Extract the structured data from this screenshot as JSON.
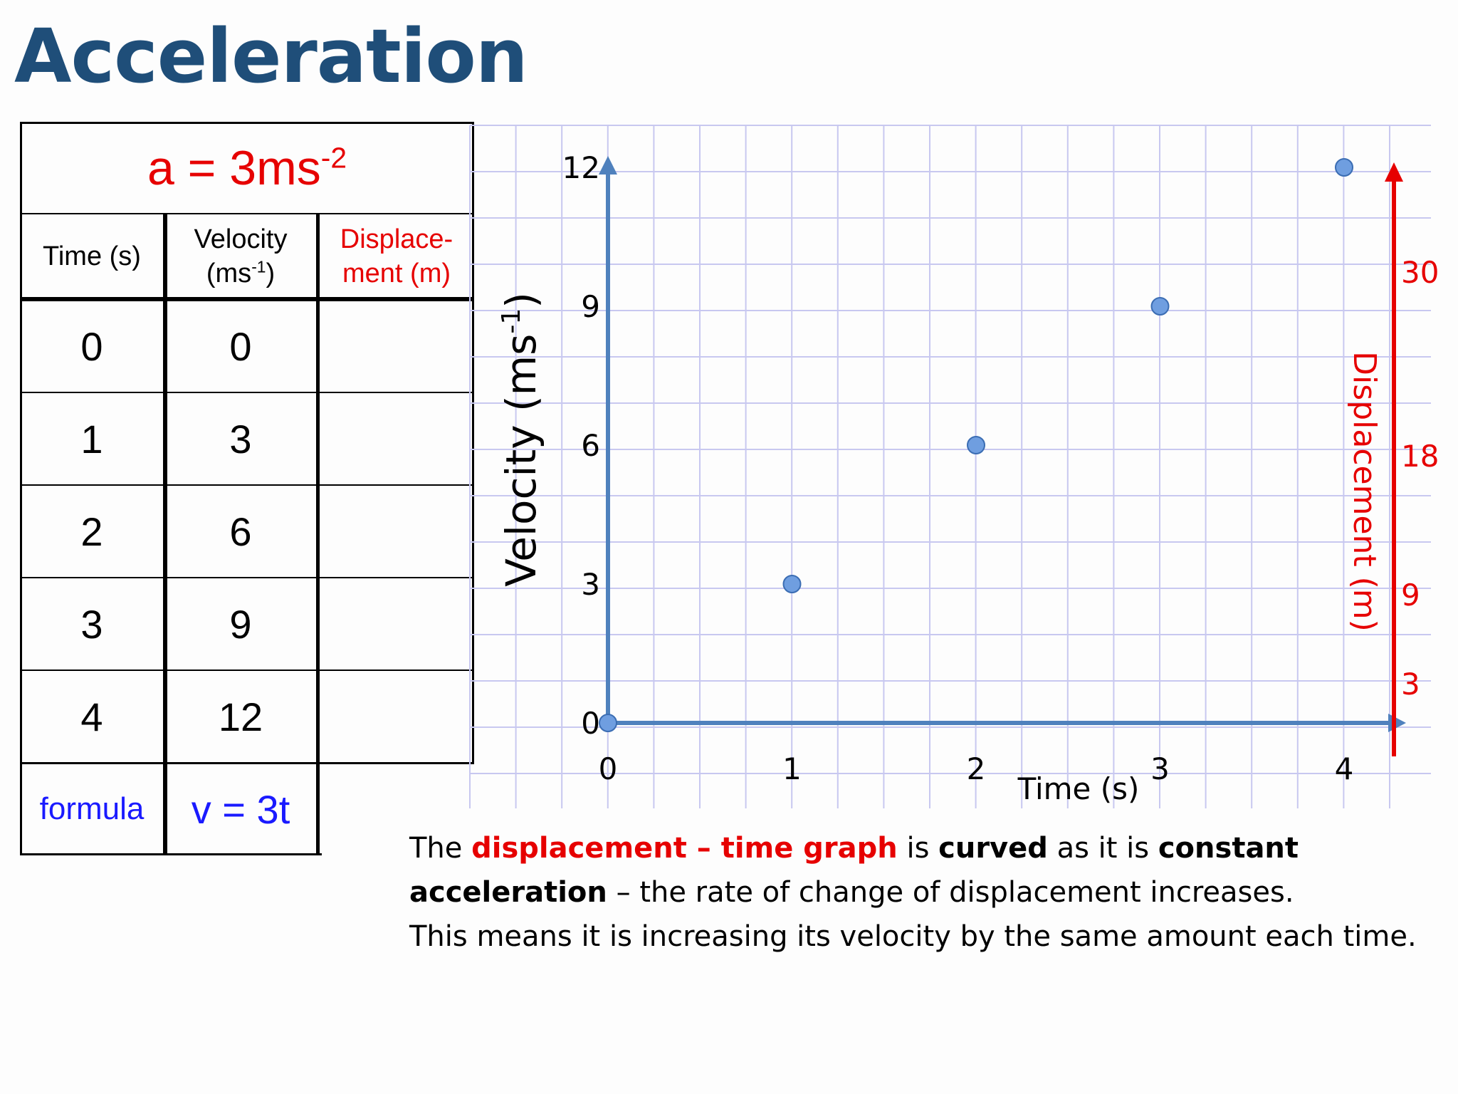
{
  "title": "Acceleration",
  "table": {
    "acceleration": {
      "prefix": "a = 3ms",
      "exp": "-2"
    },
    "headers": {
      "time": "Time (s)",
      "velocity_line1": "Velocity",
      "velocity_unit": "(ms",
      "velocity_exp": "-1",
      "velocity_close": ")",
      "displacement_line1": "Displace-",
      "displacement_line2": "ment (m)"
    },
    "rows": [
      {
        "time": "0",
        "velocity": "0",
        "displacement": ""
      },
      {
        "time": "1",
        "velocity": "3",
        "displacement": ""
      },
      {
        "time": "2",
        "velocity": "6",
        "displacement": ""
      },
      {
        "time": "3",
        "velocity": "9",
        "displacement": ""
      },
      {
        "time": "4",
        "velocity": "12",
        "displacement": ""
      }
    ],
    "formula_label": "formula",
    "formula_value": "v = 3t"
  },
  "chart_data": {
    "type": "scatter",
    "x": [
      0,
      1,
      2,
      3,
      4
    ],
    "series": [
      {
        "values": [
          0,
          3,
          6,
          9,
          12
        ]
      }
    ],
    "xlabel": "Time (s)",
    "ylabel": "Velocity (ms",
    "ylabel_exp": "-1",
    "ylabel_close": ")",
    "y2label": "Displacement (m)",
    "xticks": [
      "0",
      "1",
      "2",
      "3",
      "4"
    ],
    "yticks": [
      "0",
      "3",
      "6",
      "9",
      "12"
    ],
    "y2ticks": [
      "3",
      "9",
      "18",
      "30"
    ],
    "xlim": [
      0,
      4
    ],
    "ylim": [
      0,
      12
    ],
    "grid": true,
    "colors": {
      "grid": "#c8c8f0",
      "axis": "#4f81bd",
      "point": "#6f9ee0",
      "y2axis": "#e60000"
    }
  },
  "caption": {
    "l1_a": "The ",
    "l1_b": "displacement – time graph",
    "l1_c": " is ",
    "l1_d": "curved",
    "l1_e": " as it is ",
    "l1_f": "constant",
    "l2_a": "acceleration",
    "l2_b": " – the rate of change of displacement increases.",
    "l3": "This means it is increasing its velocity by the same amount each time."
  }
}
